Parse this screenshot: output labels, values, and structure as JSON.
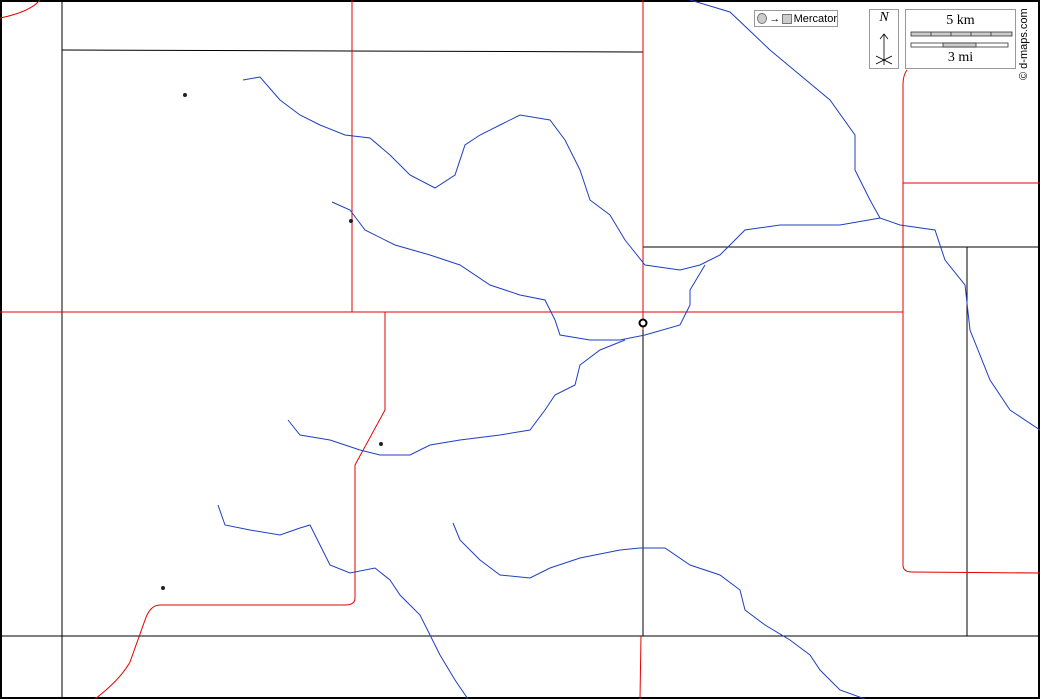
{
  "projection": {
    "label": "Mercator",
    "icon": "circle-to-square-icon"
  },
  "north_arrow": {
    "label": "N"
  },
  "scale": {
    "km_label": "5 km",
    "mi_label": "3 mi"
  },
  "copyright": "© d-maps.com",
  "colors": {
    "river": "#1f3fbf",
    "road": "#e60000",
    "boundary": "#000000"
  }
}
